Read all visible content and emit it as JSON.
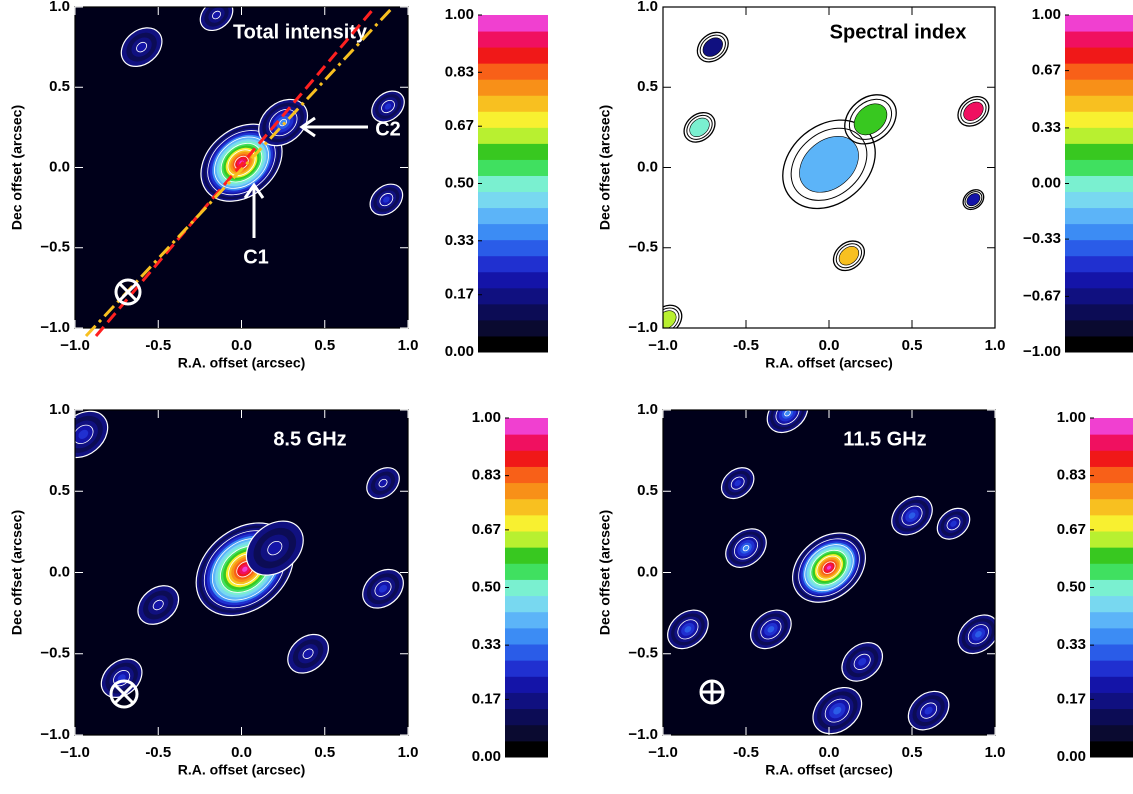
{
  "chart_data": [
    {
      "type": "intensity",
      "title": "Total intensity",
      "title_color": "#ffffff",
      "xlabel": "R.A. offset (arcsec)",
      "ylabel": "Dec offset (arcsec)",
      "xlim": [
        -1,
        1
      ],
      "ylim": [
        -1,
        1
      ],
      "xticks": [
        {
          "value": -1,
          "label": "−1.0"
        },
        -0.5,
        {
          "value": 0,
          "label": "0.0"
        },
        0.5,
        {
          "value": 1,
          "label": "1.0"
        }
      ],
      "yticks": [
        {
          "value": -1,
          "label": "−1.0"
        },
        {
          "value": -0.5,
          "label": "−0.5"
        },
        {
          "value": 0,
          "label": "0.0"
        },
        0.5,
        {
          "value": 1,
          "label": "1.0"
        }
      ],
      "background": "#00001a",
      "contour_color": "#ffffff",
      "annotations": [
        "C1",
        "C2"
      ],
      "sources": [
        {
          "x": 0.0,
          "y": 0.03,
          "peak": 1.0,
          "size": 0.1
        },
        {
          "x": 0.25,
          "y": 0.28,
          "peak": 0.35,
          "size": 0.06
        },
        {
          "x": 0.88,
          "y": 0.38,
          "peak": 0.25,
          "size": 0.04
        },
        {
          "x": 0.87,
          "y": -0.2,
          "peak": 0.25,
          "size": 0.04
        },
        {
          "x": -0.6,
          "y": 0.75,
          "peak": 0.2,
          "size": 0.05
        },
        {
          "x": -0.15,
          "y": 0.95,
          "peak": 0.2,
          "size": 0.04
        }
      ],
      "colorbar": {
        "lim": [
          0,
          1
        ],
        "ticks": [
          {
            "value": 0,
            "label": "0.00"
          },
          0.17,
          0.33,
          {
            "value": 0.5,
            "label": "0.50"
          },
          0.67,
          0.83,
          {
            "value": 1,
            "label": "1.00"
          }
        ]
      }
    },
    {
      "type": "spectral",
      "title": "Spectral index",
      "title_color": "#000000",
      "xlabel": "R.A. offset (arcsec)",
      "ylabel": "Dec offset (arcsec)",
      "xlim": [
        -1,
        1
      ],
      "ylim": [
        -1,
        1
      ],
      "xticks": [
        {
          "value": -1,
          "label": "−1.0"
        },
        -0.5,
        {
          "value": 0,
          "label": "0.0"
        },
        0.5,
        {
          "value": 1,
          "label": "1.0"
        }
      ],
      "yticks": [
        {
          "value": -1,
          "label": "−1.0"
        },
        {
          "value": -0.5,
          "label": "−0.5"
        },
        {
          "value": 0,
          "label": "0.0"
        },
        0.5,
        {
          "value": 1,
          "label": "1.0"
        }
      ],
      "background": "#ffffff",
      "contour_color": "#000000",
      "sources": [
        {
          "x": 0.0,
          "y": 0.02,
          "value": -0.2,
          "size": 0.09
        },
        {
          "x": 0.25,
          "y": 0.3,
          "value": 0.2,
          "size": 0.05
        },
        {
          "x": -0.7,
          "y": 0.75,
          "value": -0.7,
          "size": 0.03
        },
        {
          "x": 0.12,
          "y": -0.55,
          "value": 0.5,
          "size": 0.03
        },
        {
          "x": 0.87,
          "y": 0.35,
          "value": 0.9,
          "size": 0.03
        },
        {
          "x": -0.78,
          "y": 0.25,
          "value": 0.0,
          "size": 0.03
        },
        {
          "x": -0.98,
          "y": -0.95,
          "value": 0.3,
          "size": 0.03
        },
        {
          "x": 0.87,
          "y": -0.2,
          "value": -0.6,
          "size": 0.02
        }
      ],
      "colorbar": {
        "lim": [
          -1,
          1
        ],
        "ticks": [
          {
            "value": -1,
            "label": "−1.00"
          },
          {
            "value": -0.67,
            "label": "−0.67"
          },
          {
            "value": -0.33,
            "label": "−0.33"
          },
          {
            "value": 0,
            "label": "0.00"
          },
          0.33,
          0.67,
          {
            "value": 1,
            "label": "1.00"
          }
        ]
      }
    },
    {
      "type": "intensity",
      "title": "8.5 GHz",
      "title_color": "#ffffff",
      "xlabel": "R.A. offset (arcsec)",
      "ylabel": "Dec offset (arcsec)",
      "xlim": [
        -1,
        1
      ],
      "ylim": [
        -1,
        1
      ],
      "xticks": [
        {
          "value": -1,
          "label": "−1.0"
        },
        -0.5,
        {
          "value": 0,
          "label": "0.0"
        },
        0.5,
        {
          "value": 1,
          "label": "1.0"
        }
      ],
      "yticks": [
        {
          "value": -1,
          "label": "−1.0"
        },
        {
          "value": -0.5,
          "label": "−0.5"
        },
        {
          "value": 0,
          "label": "0.0"
        },
        0.5,
        {
          "value": 1,
          "label": "1.0"
        }
      ],
      "background": "#00001a",
      "contour_color": "#ffffff",
      "sources": [
        {
          "x": 0.02,
          "y": 0.02,
          "peak": 1.0,
          "size": 0.12
        },
        {
          "x": 0.2,
          "y": 0.15,
          "peak": 0.2,
          "size": 0.07
        },
        {
          "x": -0.95,
          "y": 0.85,
          "peak": 0.25,
          "size": 0.06
        },
        {
          "x": -0.72,
          "y": -0.65,
          "peak": 0.25,
          "size": 0.05
        },
        {
          "x": 0.85,
          "y": -0.1,
          "peak": 0.25,
          "size": 0.05
        },
        {
          "x": -0.5,
          "y": -0.2,
          "peak": 0.2,
          "size": 0.05
        },
        {
          "x": 0.4,
          "y": -0.5,
          "peak": 0.2,
          "size": 0.05
        },
        {
          "x": 0.85,
          "y": 0.55,
          "peak": 0.22,
          "size": 0.04
        }
      ],
      "colorbar": {
        "lim": [
          0,
          1
        ],
        "ticks": [
          {
            "value": 0,
            "label": "0.00"
          },
          0.17,
          0.33,
          {
            "value": 0.5,
            "label": "0.50"
          },
          0.67,
          0.83,
          {
            "value": 1,
            "label": "1.00"
          }
        ]
      }
    },
    {
      "type": "intensity",
      "title": "11.5 GHz",
      "title_color": "#ffffff",
      "xlabel": "R.A. offset (arcsec)",
      "ylabel": "Dec offset (arcsec)",
      "xlim": [
        -1,
        1
      ],
      "ylim": [
        -1,
        1
      ],
      "xticks": [
        {
          "value": -1,
          "label": "−1.0"
        },
        -0.5,
        {
          "value": 0,
          "label": "0.0"
        },
        0.5,
        {
          "value": 1,
          "label": "1.0"
        }
      ],
      "yticks": [
        {
          "value": -1,
          "label": "−1.0"
        },
        {
          "value": -0.5,
          "label": "−0.5"
        },
        {
          "value": 0,
          "label": "0.0"
        },
        0.5,
        {
          "value": 1,
          "label": "1.0"
        }
      ],
      "background": "#00001a",
      "contour_color": "#ffffff",
      "sources": [
        {
          "x": 0.0,
          "y": 0.03,
          "peak": 1.0,
          "size": 0.09
        },
        {
          "x": -0.5,
          "y": 0.15,
          "peak": 0.35,
          "size": 0.05
        },
        {
          "x": -0.25,
          "y": 0.98,
          "peak": 0.35,
          "size": 0.05
        },
        {
          "x": -0.35,
          "y": -0.35,
          "peak": 0.3,
          "size": 0.05
        },
        {
          "x": -0.85,
          "y": -0.35,
          "peak": 0.3,
          "size": 0.05
        },
        {
          "x": 0.05,
          "y": -0.85,
          "peak": 0.3,
          "size": 0.06
        },
        {
          "x": 0.5,
          "y": 0.35,
          "peak": 0.3,
          "size": 0.05
        },
        {
          "x": 0.75,
          "y": 0.3,
          "peak": 0.25,
          "size": 0.04
        },
        {
          "x": 0.9,
          "y": -0.38,
          "peak": 0.3,
          "size": 0.05
        },
        {
          "x": -0.55,
          "y": 0.55,
          "peak": 0.25,
          "size": 0.04
        },
        {
          "x": 0.6,
          "y": -0.85,
          "peak": 0.25,
          "size": 0.05
        },
        {
          "x": 0.2,
          "y": -0.55,
          "peak": 0.25,
          "size": 0.05
        }
      ],
      "colorbar": {
        "lim": [
          0,
          1
        ],
        "ticks": [
          {
            "value": 0,
            "label": "0.00"
          },
          0.17,
          0.33,
          {
            "value": 0.5,
            "label": "0.50"
          },
          0.67,
          0.83,
          {
            "value": 1,
            "label": "1.00"
          }
        ]
      }
    }
  ]
}
